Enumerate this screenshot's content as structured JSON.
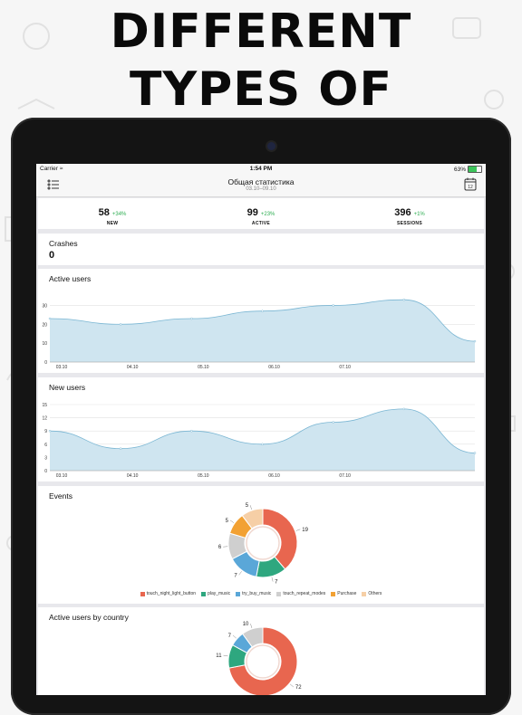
{
  "headline": {
    "line1": "DIFFERENT",
    "line2": "TYPES OF REPORTS"
  },
  "statusbar": {
    "carrier": "Carrier",
    "time": "1:54 PM",
    "battery": "63%"
  },
  "navbar": {
    "title": "Общая статистика",
    "subtitle": "03.10–09.10"
  },
  "stats": [
    {
      "value": "58",
      "delta": "+34%",
      "label": "NEW"
    },
    {
      "value": "99",
      "delta": "+23%",
      "label": "ACTIVE"
    },
    {
      "value": "396",
      "delta": "+1%",
      "label": "SESSIONS"
    }
  ],
  "crashes": {
    "title": "Crashes",
    "value": "0"
  },
  "colors": {
    "area_fill": "#cfe5f0",
    "area_line": "#7ab6d3",
    "positive": "#2eae52"
  },
  "chart_data": [
    {
      "type": "area",
      "title": "Active users",
      "x": [
        "03.10",
        "04.10",
        "05.10",
        "06.10",
        "07.10",
        "08.10",
        "09.10"
      ],
      "x_ticks": [
        "03.10",
        "04.10",
        "05.10",
        "06.10",
        "07.10"
      ],
      "values": [
        23,
        20,
        23,
        27,
        30,
        33,
        11
      ],
      "ylim": [
        0,
        35
      ],
      "y_ticks": [
        0,
        10,
        20,
        30
      ],
      "grid": true
    },
    {
      "type": "area",
      "title": "New users",
      "x": [
        "03.10",
        "04.10",
        "05.10",
        "06.10",
        "07.10",
        "08.10",
        "09.10"
      ],
      "x_ticks": [
        "03.10",
        "04.10",
        "05.10",
        "06.10",
        "07.10"
      ],
      "values": [
        9,
        5,
        9,
        6,
        11,
        14,
        4
      ],
      "ylim": [
        0,
        15
      ],
      "y_ticks": [
        0,
        3,
        6,
        9,
        12,
        15
      ],
      "grid": true
    },
    {
      "type": "pie",
      "title": "Events",
      "categories": [
        "touch_night_light_button",
        "play_music",
        "try_buy_music",
        "touch_repeat_modes",
        "Purchase",
        "Others"
      ],
      "values": [
        19,
        7,
        7,
        6,
        5,
        5
      ],
      "colors": [
        "#e8664f",
        "#2ea77f",
        "#5aa7d8",
        "#cfcfcf",
        "#f2a133",
        "#f6cfa6"
      ],
      "legend": "bottom"
    },
    {
      "type": "pie",
      "title": "Active users by country",
      "categories": [
        "",
        "",
        "",
        ""
      ],
      "values": [
        72,
        11,
        7,
        10
      ],
      "colors": [
        "#e8664f",
        "#2ea77f",
        "#5aa7d8",
        "#cfcfcf"
      ]
    }
  ]
}
